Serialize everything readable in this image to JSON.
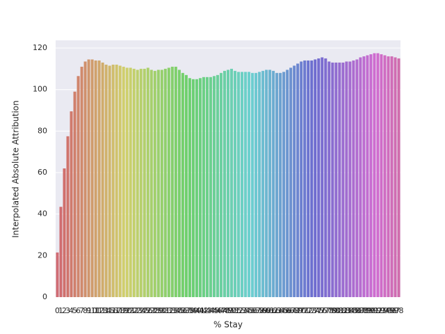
{
  "chart_data": {
    "type": "bar",
    "xlabel": "% Stay",
    "ylabel": "Interpolated Absolute Attribution",
    "palette": "husl",
    "grid": true,
    "ylim": [
      0,
      123.7
    ],
    "yticks": [
      0,
      20,
      40,
      60,
      80,
      100,
      120
    ],
    "categories": [
      "0",
      "1",
      "2",
      "3",
      "4",
      "5",
      "6",
      "7",
      "8",
      "9",
      "10",
      "11",
      "12",
      "13",
      "14",
      "15",
      "16",
      "17",
      "18",
      "19",
      "20",
      "21",
      "22",
      "23",
      "24",
      "25",
      "26",
      "27",
      "28",
      "29",
      "30",
      "31",
      "32",
      "33",
      "34",
      "35",
      "36",
      "37",
      "38",
      "39",
      "40",
      "41",
      "42",
      "43",
      "44",
      "45",
      "46",
      "47",
      "48",
      "49",
      "50",
      "51",
      "52",
      "53",
      "54",
      "55",
      "56",
      "57",
      "58",
      "59",
      "60",
      "61",
      "62",
      "63",
      "64",
      "65",
      "66",
      "67",
      "68",
      "69",
      "70",
      "71",
      "72",
      "73",
      "74",
      "75",
      "76",
      "77",
      "78",
      "79",
      "80",
      "81",
      "82",
      "83",
      "84",
      "85",
      "86",
      "87",
      "88",
      "89",
      "90",
      "91",
      "92",
      "93",
      "94",
      "95",
      "96",
      "97",
      "98"
    ],
    "values": [
      21.5,
      43.5,
      62,
      77.5,
      89.5,
      99,
      106.5,
      111,
      113.5,
      114.5,
      114.5,
      114,
      114,
      113,
      112,
      111.5,
      112,
      112,
      111.5,
      111,
      110.5,
      110.5,
      110,
      109.5,
      110,
      110,
      110.5,
      109.5,
      109,
      109.5,
      109.5,
      110,
      110.5,
      111,
      111,
      109.5,
      108,
      107,
      105.5,
      105,
      105,
      105.5,
      106,
      106,
      106,
      106.5,
      107,
      108,
      109,
      109.5,
      110,
      109,
      108.5,
      108.5,
      108.5,
      108.5,
      108,
      108,
      108.5,
      109,
      109.5,
      109.5,
      109,
      108,
      108,
      108.5,
      109.5,
      110.5,
      111.5,
      112.5,
      113.5,
      114,
      114,
      114,
      114.5,
      115,
      115.5,
      115,
      113.5,
      113,
      113,
      113,
      113,
      113.5,
      113.5,
      114,
      114.5,
      115.5,
      116,
      116.5,
      117,
      117.5,
      117.5,
      117,
      116.5,
      116,
      116,
      115.5,
      115
    ]
  }
}
